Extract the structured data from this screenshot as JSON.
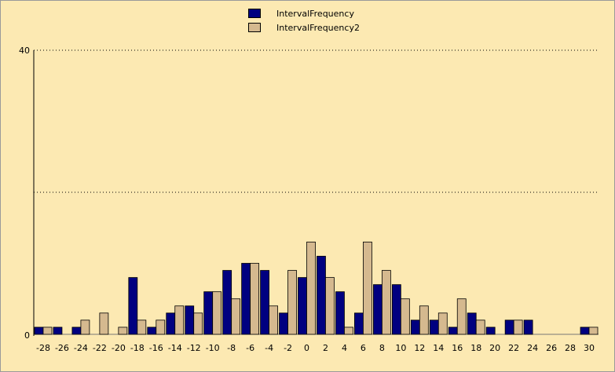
{
  "chart_data": {
    "type": "bar",
    "categories": [
      "-28",
      "-26",
      "-24",
      "-22",
      "-20",
      "-18",
      "-16",
      "-14",
      "-12",
      "-10",
      "-8",
      "-6",
      "-4",
      "-2",
      "0",
      "2",
      "4",
      "6",
      "8",
      "10",
      "12",
      "14",
      "16",
      "18",
      "20",
      "22",
      "24",
      "26",
      "28",
      "30"
    ],
    "series": [
      {
        "name": "IntervalFrequency",
        "color": "#000080",
        "values": [
          1,
          1,
          1,
          0,
          0,
          8,
          1,
          3,
          4,
          6,
          9,
          10,
          9,
          3,
          8,
          11,
          6,
          3,
          7,
          7,
          2,
          2,
          1,
          3,
          1,
          2,
          2,
          0,
          0,
          1
        ]
      },
      {
        "name": "IntervalFrequency2",
        "color": "#d5b98f",
        "values": [
          1,
          0,
          2,
          3,
          1,
          2,
          2,
          4,
          3,
          6,
          5,
          10,
          4,
          9,
          13,
          8,
          1,
          13,
          9,
          5,
          4,
          3,
          5,
          2,
          0,
          2,
          0,
          0,
          0,
          1
        ]
      }
    ],
    "y_ticks": [
      "0",
      "40"
    ],
    "ylim": [
      0,
      40
    ],
    "grid": "horizontal dotted",
    "legend_position": "top-center",
    "background": "#fce9b2"
  }
}
